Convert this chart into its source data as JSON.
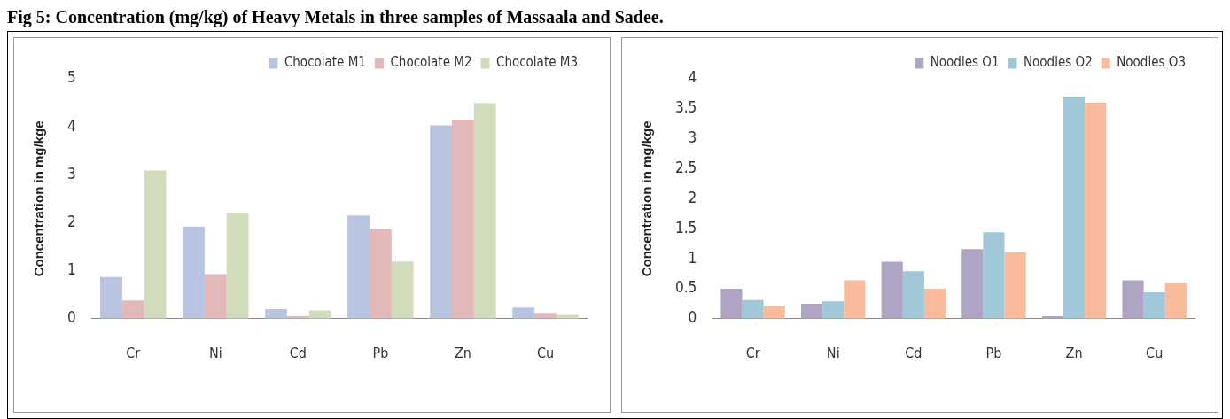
{
  "chart_data": [
    {
      "type": "bar",
      "title": "Fig 5: Concentration (mg/kg) of Heavy Metals in three samples of Massaala and Sadee.",
      "ylabel": "Concentration in mg/kge",
      "categories": [
        "Cr",
        "Ni",
        "Cd",
        "Pb",
        "Zn",
        "Cu"
      ],
      "ylim": [
        0,
        5
      ],
      "yticks": [
        0,
        1,
        2,
        3,
        4,
        5
      ],
      "legend": "top",
      "grid": false,
      "series": [
        {
          "name": "Chocolate M1",
          "color": "#b8c4e0",
          "values": [
            0.87,
            1.92,
            0.2,
            2.15,
            4.03,
            0.23
          ]
        },
        {
          "name": "Chocolate M2",
          "color": "#e2b8b8",
          "values": [
            0.38,
            0.93,
            0.05,
            1.87,
            4.13,
            0.12
          ]
        },
        {
          "name": "Chocolate M3",
          "color": "#d0dcbc",
          "values": [
            3.09,
            2.21,
            0.17,
            1.19,
            4.49,
            0.08
          ]
        }
      ]
    },
    {
      "type": "bar",
      "ylabel": "Concentration in mg/kge",
      "categories": [
        "Cr",
        "Ni",
        "Cd",
        "Pb",
        "Zn",
        "Cu"
      ],
      "ylim": [
        0,
        4
      ],
      "yticks": [
        0,
        0.5,
        1,
        1.5,
        2,
        2.5,
        3,
        3.5,
        4
      ],
      "legend": "top",
      "grid": false,
      "series": [
        {
          "name": "Noodles O1",
          "color": "#b0a4c4",
          "values": [
            0.5,
            0.25,
            0.95,
            1.16,
            0.04,
            0.64
          ]
        },
        {
          "name": "Noodles O2",
          "color": "#a0c8d8",
          "values": [
            0.31,
            0.29,
            0.79,
            1.44,
            3.7,
            0.44
          ]
        },
        {
          "name": "Noodles O3",
          "color": "#f8bc9c",
          "values": [
            0.21,
            0.64,
            0.5,
            1.11,
            3.6,
            0.6
          ]
        }
      ]
    }
  ]
}
